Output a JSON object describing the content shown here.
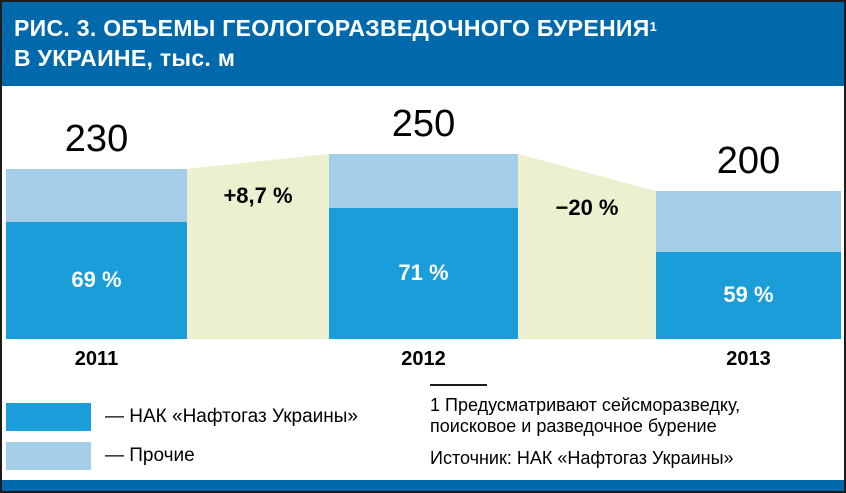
{
  "header": {
    "title_line1": "РИС. 3. ОБЪЕМЫ ГЕОЛОГОРАЗВЕДОЧНОГО БУРЕНИЯ",
    "title_superscript": "1",
    "title_line2": "В УКРАИНЕ, тыс. м"
  },
  "chart_data": {
    "type": "bar",
    "stacked": true,
    "title": "РИС. 3. Объемы геологоразведочного бурения в Украине",
    "unit": "тыс. м",
    "categories": [
      "2011",
      "2012",
      "2013"
    ],
    "totals": [
      230,
      250,
      200
    ],
    "value_labels": [
      "230",
      "250",
      "200"
    ],
    "series": [
      {
        "name": "НАК «Нафтогаз Украины»",
        "color": "#1b9dd9",
        "share_percent": [
          69,
          71,
          59
        ],
        "share_labels": [
          "69 %",
          "71 %",
          "59 %"
        ]
      },
      {
        "name": "Прочие",
        "color": "#a5cde7",
        "share_percent": [
          31,
          29,
          41
        ]
      }
    ],
    "change_labels": [
      "+8,7 %",
      "−20 %"
    ],
    "legend_position": "bottom-left",
    "grid": false
  },
  "legend": {
    "items": [
      {
        "label": "— НАК «Нафтогаз Украины»",
        "color": "#1b9dd9"
      },
      {
        "label": "— Прочие",
        "color": "#a5cde7"
      }
    ]
  },
  "footnote": {
    "line1": "1 Предусматривают сейсморазведку,",
    "line2": "поисковое и разведочное бурение",
    "source": "Источник: НАК «Нафтогаз Украины»"
  },
  "colors": {
    "header_bg": "#0069ac",
    "naftogaz_bar": "#1b9dd9",
    "others_bar": "#a5cde7",
    "change_band": "#edf0ce"
  }
}
